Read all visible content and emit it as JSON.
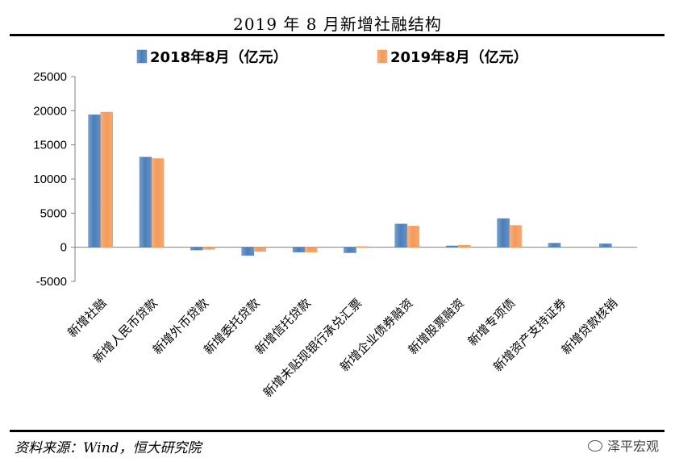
{
  "title": "2019 年 8 月新增社融结构",
  "source_note": "资料来源：Wind，恒大研究院",
  "watermark": "泽平宏观",
  "colors": {
    "series_2018": "#4a7ebb",
    "series_2019": "#f39a5a",
    "axis": "#808080"
  },
  "chart_data": {
    "type": "bar",
    "categories": [
      "新增社融",
      "新增人民币贷款",
      "新增外币贷款",
      "新增委托贷款",
      "新增信托贷款",
      "新增未贴现银行承兑汇票",
      "新增企业债券融资",
      "新增股票融资",
      "新增专项债",
      "新增资产支持证券",
      "新增贷款核销"
    ],
    "series": [
      {
        "name": "2018年8月（亿元）",
        "values": [
          19400,
          13200,
          -400,
          -1200,
          -700,
          -800,
          3400,
          200,
          4200,
          600,
          500
        ]
      },
      {
        "name": "2019年8月（亿元）",
        "values": [
          19800,
          13000,
          -300,
          -600,
          -700,
          100,
          3100,
          300,
          3200,
          0,
          0
        ]
      }
    ],
    "ylim": [
      -5000,
      25000
    ],
    "yticks": [
      "25000",
      "20000",
      "15000",
      "10000",
      "5000",
      "0",
      "-5000"
    ],
    "ytick_values": [
      25000,
      20000,
      15000,
      10000,
      5000,
      0,
      -5000
    ],
    "legend_position": "top",
    "grid": false
  }
}
